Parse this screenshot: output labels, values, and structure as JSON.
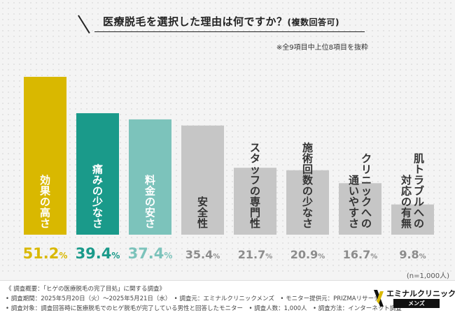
{
  "title": {
    "main": "医療脱毛を選択した理由は何ですか？",
    "sub": "(複数回答可)"
  },
  "note": "※全9項目中上位8項目を抜粋",
  "sample_size": "(n=1,000人)",
  "footer": {
    "line1": "《 調査概要：「ヒゲの医療脱毛の完了目処」に関する調査》",
    "line2": "• 調査期間：2025年5月20日（火）～2025年5月21日（水）　• 調査元：エミナルクリニックメンズ　• モニター提供元：PRIZMAリサーチ",
    "line3": "• 調査対象：調査回答時に医療脱毛でのヒゲ脱毛が完了している男性と回答したモニター　• 調査人数：1,000人　• 調査方法：インターネット調査"
  },
  "logo": {
    "name": "エミナルクリニック",
    "sub": "メンズ"
  },
  "chart_data": {
    "type": "bar",
    "title": "医療脱毛を選択した理由は何ですか？(複数回答可)",
    "categories": [
      "効果の高さ",
      "痛みの少なさ",
      "料金の安さ",
      "安全性",
      "スタッフの専門性",
      "施術回数の少なさ",
      "クリニックへの通いやすさ",
      "肌トラブルへの対応の有無"
    ],
    "category_lines": [
      [
        "効果の高さ"
      ],
      [
        "痛みの少なさ"
      ],
      [
        "料金の安さ"
      ],
      [
        "安全性"
      ],
      [
        "スタッフの専門性"
      ],
      [
        "施術回数の少なさ"
      ],
      [
        "クリニックへの",
        "通いやすさ"
      ],
      [
        "肌トラブルへの",
        "対応の有無"
      ]
    ],
    "values": [
      51.2,
      39.4,
      37.4,
      35.4,
      21.7,
      20.9,
      16.7,
      9.8
    ],
    "labels": [
      "51.2",
      "39.4",
      "37.4",
      "35.4",
      "21.7",
      "20.9",
      "16.7",
      "9.8"
    ],
    "unit": "%",
    "bar_colors": [
      "#d9b800",
      "#1a9a8a",
      "#7cc3bb",
      "#c6c6c6",
      "#c6c6c6",
      "#c6c6c6",
      "#c6c6c6",
      "#c6c6c6"
    ],
    "inside_text_colors": [
      "#ffffff",
      "#ffffff",
      "#ffffff",
      "#333333",
      "#333333",
      "#333333",
      "#333333",
      "#333333"
    ],
    "value_colors": [
      "#d9b800",
      "#1a9a8a",
      "#7cc3bb",
      "#8c8c8c",
      "#8c8c8c",
      "#8c8c8c",
      "#8c8c8c",
      "#8c8c8c"
    ],
    "ylim": [
      0,
      51.2
    ],
    "grid": false,
    "legend": "none"
  }
}
